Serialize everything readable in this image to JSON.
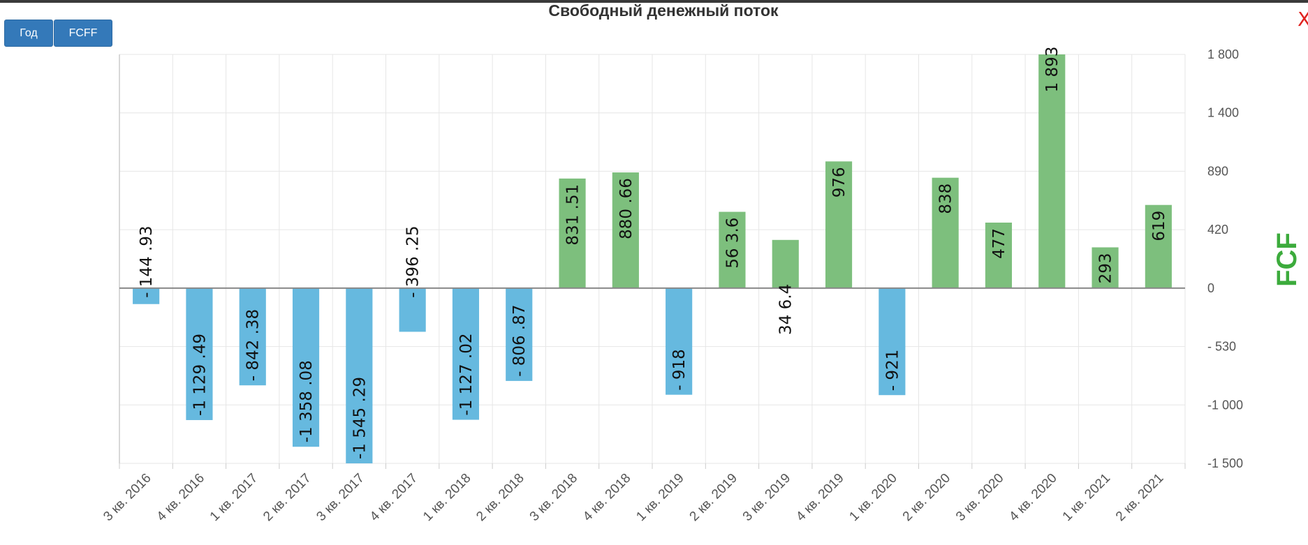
{
  "toolbar": {
    "year_label": "Год",
    "fcff_label": "FCFF"
  },
  "close_label": "X",
  "colors": {
    "positive": "#7dbf7d",
    "negative": "#66b9df",
    "button": "#3479b9",
    "axis_title": "#3cab3c",
    "close": "#e0221f"
  },
  "chart_data": {
    "type": "bar",
    "title": "Свободный денежный поток",
    "ylabel": "FCF",
    "categories": [
      "3 кв. 2016",
      "4 кв. 2016",
      "1 кв. 2017",
      "2 кв. 2017",
      "3 кв. 2017",
      "4 кв. 2017",
      "1 кв. 2018",
      "2 кв. 2018",
      "3 кв. 2018",
      "4 кв. 2018",
      "1 кв. 2019",
      "2 кв. 2019",
      "3 кв. 2019",
      "4 кв. 2019",
      "1 кв. 2020",
      "2 кв. 2020",
      "3 кв. 2020",
      "4 кв. 2020",
      "1 кв. 2021",
      "2 кв. 2021"
    ],
    "values": [
      -144.93,
      -1129.49,
      -842.38,
      -1358.08,
      -1545.29,
      -396.25,
      -1127.02,
      -806.87,
      831.51,
      880.66,
      -918,
      563.6,
      346.4,
      976,
      -921,
      838,
      477,
      1893,
      293,
      619
    ],
    "data_labels": [
      "- 144 .93",
      "-1 129 .49",
      "- 842 .38",
      "-1 358 .08",
      "-1 545 .29",
      "- 396 .25",
      "-1 127 .02",
      "- 806 .87",
      "831 .51",
      "880 .66",
      "- 918",
      "56 3.6",
      "34 6.4",
      "976",
      "- 921",
      "838",
      "477",
      "1 893",
      "293",
      "619"
    ],
    "yticks": [
      {
        "value": 1800,
        "label": "1 800"
      },
      {
        "value": 1400,
        "label": "1 400"
      },
      {
        "value": 890,
        "label": "890"
      },
      {
        "value": 420,
        "label": "420"
      },
      {
        "value": 0,
        "label": "0"
      },
      {
        "value": -530,
        "label": "- 530"
      },
      {
        "value": -1000,
        "label": "-1 000"
      },
      {
        "value": -1500,
        "label": "-1 500"
      }
    ],
    "grid": true,
    "legend": "none"
  }
}
